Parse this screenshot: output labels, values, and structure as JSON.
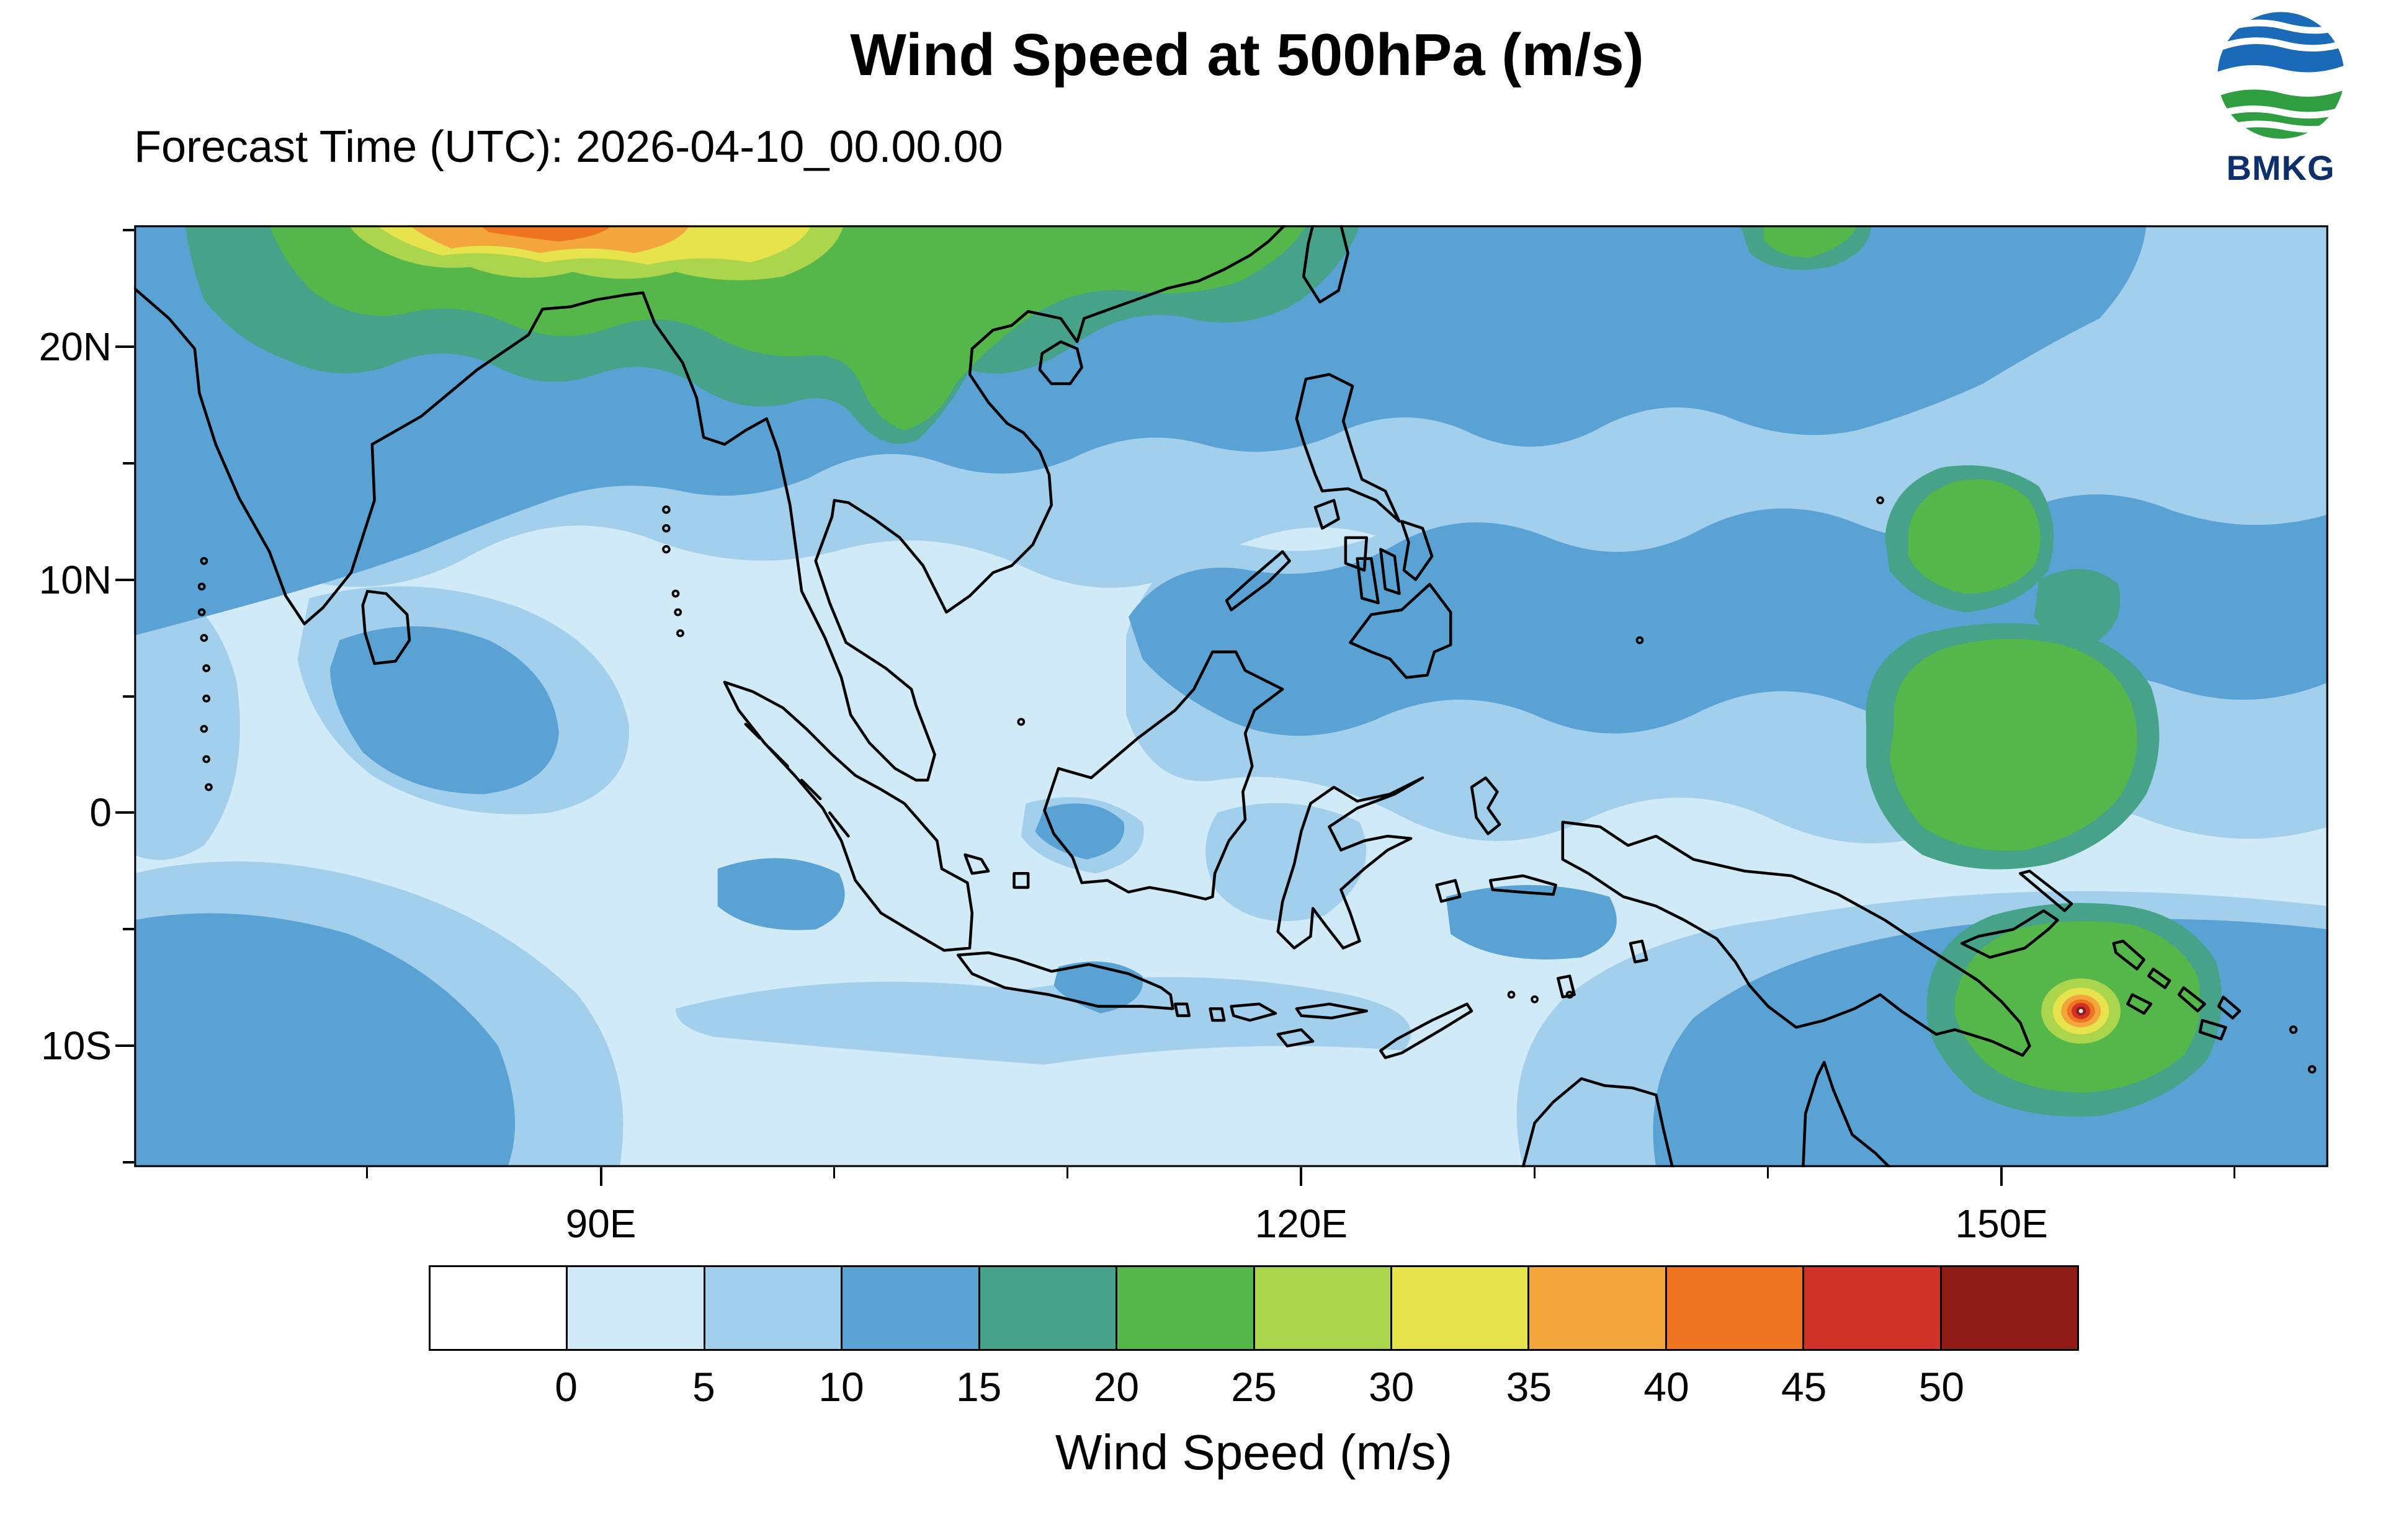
{
  "header": {
    "title": "Wind Speed at 500hPa (m/s)",
    "forecast_label": "Forecast Time (UTC): 2026-04-10_00.00.00",
    "logo_text": "BMKG"
  },
  "axes": {
    "lat_labels": [
      {
        "text": "20N",
        "lat": 20
      },
      {
        "text": "10N",
        "lat": 10
      },
      {
        "text": "0",
        "lat": 0
      },
      {
        "text": "10S",
        "lat": -10
      }
    ],
    "lon_labels": [
      {
        "text": "90E",
        "lon": 90
      },
      {
        "text": "120E",
        "lon": 120
      },
      {
        "text": "150E",
        "lon": 150
      }
    ],
    "lon_minor_ticks": [
      80,
      90,
      100,
      110,
      120,
      130,
      140,
      150,
      160
    ],
    "lat_minor_ticks": [
      25,
      20,
      15,
      10,
      5,
      0,
      -5,
      -10,
      -15
    ]
  },
  "colorbar": {
    "label": "Wind Speed (m/s)",
    "tick_labels": [
      "0",
      "5",
      "10",
      "15",
      "20",
      "25",
      "30",
      "35",
      "40",
      "45",
      "50"
    ],
    "colors": [
      "#ffffff",
      "#d0eaf8",
      "#a1cfec",
      "#5aa2d4",
      "#46a288",
      "#55b649",
      "#abd54c",
      "#e7e34c",
      "#f2a63c",
      "#ee7422",
      "#d03227",
      "#8f1d15"
    ]
  },
  "chart_data": {
    "type": "heatmap",
    "title": "Wind Speed at 500hPa (m/s)",
    "subtitle": "Forecast Time (UTC): 2026-04-10_00.00.00",
    "variable": "Wind Speed",
    "pressure_level": "500hPa",
    "units": "m/s",
    "lon_range": [
      70,
      164
    ],
    "lat_range": [
      -15,
      25
    ],
    "x_tick_values": [
      90,
      120,
      150
    ],
    "y_tick_values": [
      20,
      10,
      0,
      -10
    ],
    "contour_levels": [
      0,
      5,
      10,
      15,
      20,
      25,
      30,
      35,
      40,
      45,
      50
    ],
    "legend_position": "bottom",
    "grid": false,
    "notable_features": [
      {
        "feature": "subtropical jet maximum",
        "lon": 95,
        "lat": 25,
        "value_m_s": "35-45"
      },
      {
        "feature": "strong band along northern edge",
        "lon_span": [
          78,
          125
        ],
        "lat": 23,
        "value_m_s": "20-30"
      },
      {
        "feature": "tropical-cyclone-like vortex with intense core",
        "lon": 154,
        "lat": -9,
        "value_m_s": ">45"
      },
      {
        "feature": "west Pacific maximum",
        "lon": 150,
        "lat": 12,
        "value_m_s": "20-25"
      },
      {
        "feature": "west Pacific maximum",
        "lon": 151,
        "lat": -1,
        "value_m_s": "20-25"
      },
      {
        "feature": "broad weak flow over Maritime Continent",
        "lon": 110,
        "lat": -3,
        "value_m_s": "0-10"
      }
    ]
  }
}
